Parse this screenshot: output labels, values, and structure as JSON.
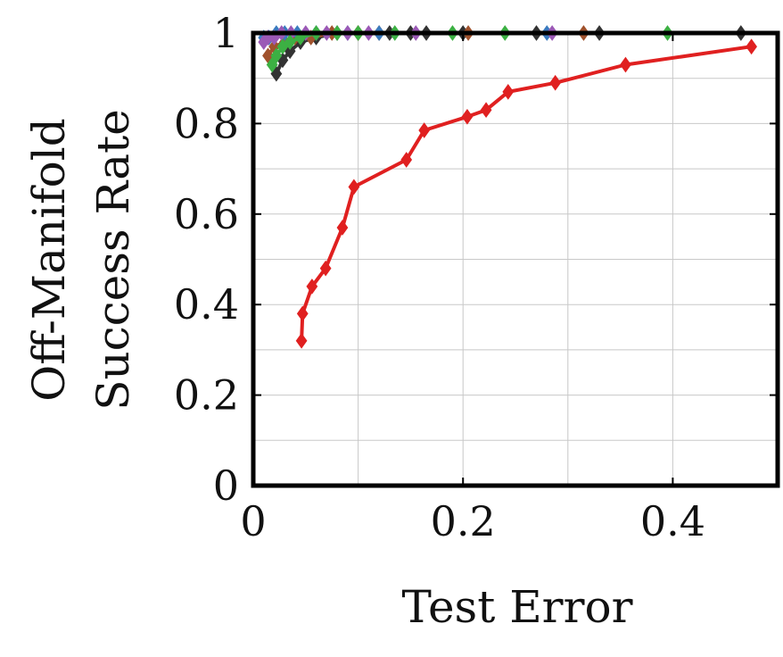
{
  "chart_data": {
    "type": "line",
    "title": "",
    "xlabel": "Test Error",
    "ylabel_lines": [
      "Off-Manifold",
      "Success Rate"
    ],
    "xlim": [
      0,
      0.5
    ],
    "ylim": [
      0,
      1
    ],
    "xticks": [
      0,
      0.2,
      0.4
    ],
    "xtick_labels": [
      "0",
      "0.2",
      "0.4"
    ],
    "yticks": [
      0,
      0.2,
      0.4,
      0.6,
      0.8,
      1
    ],
    "ytick_labels": [
      "0",
      "0.2",
      "0.4",
      "0.6",
      "0.8",
      "1"
    ],
    "grid": true,
    "legend": "none",
    "series": [
      {
        "color": "#333333",
        "marker": "diamond",
        "x": [
          0.022,
          0.028,
          0.035,
          0.045,
          0.06,
          0.08,
          0.1,
          0.13,
          0.15,
          0.165,
          0.2,
          0.27,
          0.33,
          0.465
        ],
        "y": [
          0.91,
          0.94,
          0.96,
          0.98,
          0.99,
          1.0,
          1.0,
          1.0,
          1.0,
          1.0,
          1.0,
          1.0,
          1.0,
          1.0
        ]
      },
      {
        "color": "#a0522d",
        "marker": "diamond",
        "x": [
          0.014,
          0.02,
          0.03,
          0.04,
          0.055,
          0.075,
          0.1,
          0.12,
          0.205,
          0.315
        ],
        "y": [
          0.95,
          0.97,
          0.98,
          0.99,
          0.99,
          1.0,
          1.0,
          1.0,
          1.0,
          1.0
        ]
      },
      {
        "color": "#3a7bbf",
        "marker": "diamond",
        "x": [
          0.01,
          0.015,
          0.022,
          0.03,
          0.042,
          0.06,
          0.09,
          0.12,
          0.28
        ],
        "y": [
          0.99,
          0.99,
          1.0,
          1.0,
          1.0,
          1.0,
          1.0,
          1.0,
          1.0
        ]
      },
      {
        "color": "#9b59b6",
        "marker": "diamond",
        "x": [
          0.01,
          0.014,
          0.02,
          0.027,
          0.036,
          0.05,
          0.07,
          0.09,
          0.11,
          0.155,
          0.285
        ],
        "y": [
          0.98,
          0.99,
          0.99,
          1.0,
          1.0,
          1.0,
          1.0,
          1.0,
          1.0,
          1.0,
          1.0
        ]
      },
      {
        "color": "#3cb043",
        "marker": "diamond",
        "x": [
          0.018,
          0.022,
          0.028,
          0.035,
          0.045,
          0.06,
          0.08,
          0.1,
          0.135,
          0.19,
          0.24,
          0.395
        ],
        "y": [
          0.93,
          0.95,
          0.97,
          0.98,
          0.99,
          1.0,
          1.0,
          1.0,
          1.0,
          1.0,
          1.0,
          1.0
        ]
      },
      {
        "color": "#e02020",
        "marker": "diamond",
        "x": [
          0.046,
          0.047,
          0.056,
          0.069,
          0.085,
          0.096,
          0.146,
          0.163,
          0.204,
          0.222,
          0.243,
          0.288,
          0.355,
          0.475
        ],
        "y": [
          0.32,
          0.38,
          0.44,
          0.48,
          0.57,
          0.66,
          0.72,
          0.785,
          0.815,
          0.83,
          0.87,
          0.89,
          0.93,
          0.97
        ]
      }
    ]
  }
}
